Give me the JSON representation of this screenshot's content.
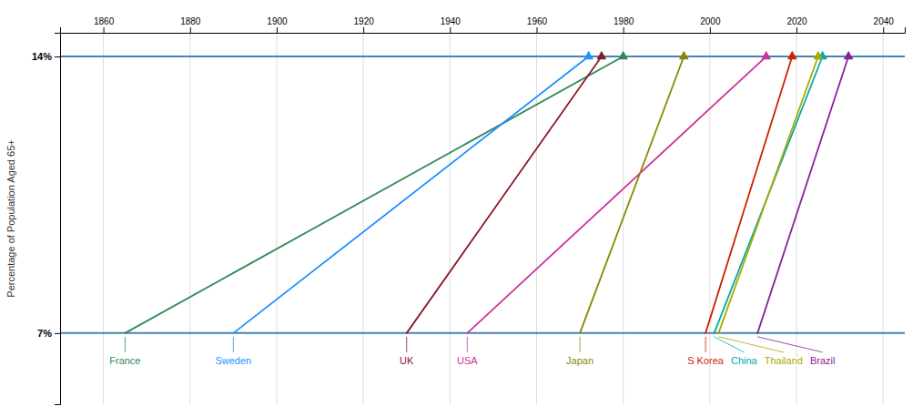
{
  "chart_data": {
    "type": "line",
    "y_label": "Percentage of Population Aged 65+",
    "xlim": [
      1850,
      2045
    ],
    "xticks": [
      1860,
      1880,
      1900,
      1920,
      1940,
      1960,
      1980,
      2000,
      2020,
      2040
    ],
    "ylim": [
      5.2,
      14.6
    ],
    "yticks": [
      {
        "value": 7,
        "label": "7%"
      },
      {
        "value": 14,
        "label": "14%"
      }
    ],
    "grid": true,
    "marker": "triangle",
    "series": [
      {
        "name": "France",
        "color": "#2e8b57",
        "x": [
          1865,
          1980
        ],
        "values": [
          7,
          14
        ]
      },
      {
        "name": "Sweden",
        "color": "#1e90ff",
        "x": [
          1890,
          1972
        ],
        "values": [
          7,
          14
        ]
      },
      {
        "name": "UK",
        "color": "#8b1a2a",
        "x": [
          1930,
          1975
        ],
        "values": [
          7,
          14
        ]
      },
      {
        "name": "USA",
        "color": "#cc3399",
        "x": [
          1944,
          2013
        ],
        "values": [
          7,
          14
        ]
      },
      {
        "name": "Japan",
        "color": "#888800",
        "x": [
          1970,
          1994
        ],
        "values": [
          7,
          14
        ]
      },
      {
        "name": "S Korea",
        "color": "#cc2200",
        "x": [
          1999,
          2019
        ],
        "values": [
          7,
          14
        ]
      },
      {
        "name": "China",
        "color": "#00aaaa",
        "x": [
          2001,
          2026
        ],
        "values": [
          7,
          14
        ]
      },
      {
        "name": "Thailand",
        "color": "#aaaa00",
        "x": [
          2002,
          2025
        ],
        "values": [
          7,
          14
        ]
      },
      {
        "name": "Brazil",
        "color": "#882299",
        "x": [
          2011,
          2032
        ],
        "values": [
          7,
          14
        ]
      }
    ]
  }
}
